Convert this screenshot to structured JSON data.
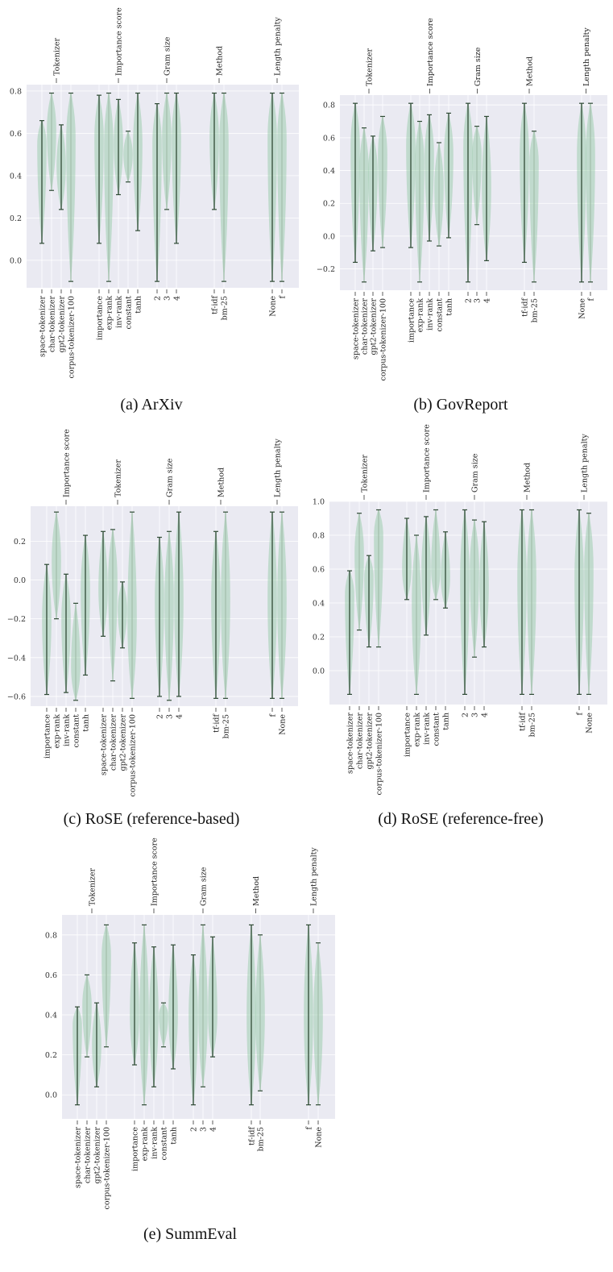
{
  "chart_data": [
    {
      "type": "violin",
      "caption": "(a) ArXiv",
      "ylim": [
        -0.13,
        0.83
      ],
      "yticks": [
        0.0,
        0.2,
        0.4,
        0.6,
        0.8
      ],
      "yticklabels": [
        "0.0",
        "0.2",
        "0.4",
        "0.6",
        "0.8"
      ],
      "groups": [
        {
          "label": "Tokenizer",
          "items": [
            {
              "label": "space-tokenizer",
              "min": 0.08,
              "max": 0.66,
              "center": 0.55
            },
            {
              "label": "char-tokenizer",
              "min": 0.33,
              "max": 0.79,
              "center": 0.62
            },
            {
              "label": "gpt2-tokenizer",
              "min": 0.24,
              "max": 0.64,
              "center": 0.45
            },
            {
              "label": "corpus-tokenizer-100",
              "min": -0.1,
              "max": 0.79,
              "center": 0.58
            }
          ]
        },
        {
          "label": "Importance score",
          "items": [
            {
              "label": "importance",
              "min": 0.08,
              "max": 0.78,
              "center": 0.58
            },
            {
              "label": "exp-rank",
              "min": -0.1,
              "max": 0.79,
              "center": 0.55
            },
            {
              "label": "inv-rank",
              "min": 0.31,
              "max": 0.76,
              "center": 0.55
            },
            {
              "label": "constant",
              "min": 0.37,
              "max": 0.61,
              "center": 0.5
            },
            {
              "label": "tanh",
              "min": 0.14,
              "max": 0.79,
              "center": 0.55
            }
          ]
        },
        {
          "label": "Gram size",
          "items": [
            {
              "label": "2",
              "min": -0.1,
              "max": 0.74,
              "center": 0.55
            },
            {
              "label": "3",
              "min": 0.24,
              "max": 0.79,
              "center": 0.58
            },
            {
              "label": "4",
              "min": 0.08,
              "max": 0.79,
              "center": 0.58
            }
          ]
        },
        {
          "label": "Method",
          "items": [
            {
              "label": "tf-idf",
              "min": 0.24,
              "max": 0.79,
              "center": 0.58
            },
            {
              "label": "bm-25",
              "min": -0.1,
              "max": 0.79,
              "center": 0.56
            }
          ]
        },
        {
          "label": "Length penalty",
          "items": [
            {
              "label": "None",
              "min": -0.1,
              "max": 0.79,
              "center": 0.58
            },
            {
              "label": "f",
              "min": -0.1,
              "max": 0.79,
              "center": 0.57
            }
          ]
        }
      ]
    },
    {
      "type": "violin",
      "caption": "(b) GovReport",
      "ylim": [
        -0.33,
        0.86
      ],
      "yticks": [
        -0.2,
        0.0,
        0.2,
        0.4,
        0.6,
        0.8
      ],
      "yticklabels": [
        "−0.2",
        "0.0",
        "0.2",
        "0.4",
        "0.6",
        "0.8"
      ],
      "groups": [
        {
          "label": "Tokenizer",
          "items": [
            {
              "label": "space-tokenizer",
              "min": -0.16,
              "max": 0.81,
              "center": 0.55
            },
            {
              "label": "char-tokenizer",
              "min": -0.28,
              "max": 0.66,
              "center": 0.4
            },
            {
              "label": "gpt2-tokenizer",
              "min": -0.09,
              "max": 0.61,
              "center": 0.4
            },
            {
              "label": "corpus-tokenizer-100",
              "min": -0.07,
              "max": 0.73,
              "center": 0.5
            }
          ]
        },
        {
          "label": "Importance score",
          "items": [
            {
              "label": "importance",
              "min": -0.07,
              "max": 0.81,
              "center": 0.55
            },
            {
              "label": "exp-rank",
              "min": -0.28,
              "max": 0.7,
              "center": 0.45
            },
            {
              "label": "inv-rank",
              "min": -0.03,
              "max": 0.74,
              "center": 0.5
            },
            {
              "label": "constant",
              "min": -0.06,
              "max": 0.57,
              "center": 0.3
            },
            {
              "label": "tanh",
              "min": -0.01,
              "max": 0.75,
              "center": 0.5
            }
          ]
        },
        {
          "label": "Gram size",
          "items": [
            {
              "label": "2",
              "min": -0.28,
              "max": 0.81,
              "center": 0.55
            },
            {
              "label": "3",
              "min": 0.07,
              "max": 0.67,
              "center": 0.5
            },
            {
              "label": "4",
              "min": -0.15,
              "max": 0.73,
              "center": 0.3
            }
          ]
        },
        {
          "label": "Method",
          "items": [
            {
              "label": "tf-idf",
              "min": -0.16,
              "max": 0.81,
              "center": 0.5
            },
            {
              "label": "bm-25",
              "min": -0.28,
              "max": 0.64,
              "center": 0.45
            }
          ]
        },
        {
          "label": "Length penalty",
          "items": [
            {
              "label": "None",
              "min": -0.28,
              "max": 0.81,
              "center": 0.5
            },
            {
              "label": "f",
              "min": -0.28,
              "max": 0.81,
              "center": 0.5
            }
          ]
        }
      ]
    },
    {
      "type": "violin",
      "caption": "(c) RoSE (reference-based)",
      "ylim": [
        -0.65,
        0.38
      ],
      "yticks": [
        -0.6,
        -0.4,
        -0.2,
        0.0,
        0.2
      ],
      "yticklabels": [
        "−0.6",
        "−0.4",
        "−0.2",
        "0.0",
        "0.2"
      ],
      "groups": [
        {
          "label": "Importance score",
          "items": [
            {
              "label": "importance",
              "min": -0.59,
              "max": 0.08,
              "center": -0.2
            },
            {
              "label": "exp-rank",
              "min": -0.2,
              "max": 0.35,
              "center": 0.1
            },
            {
              "label": "inv-rank",
              "min": -0.58,
              "max": 0.03,
              "center": -0.2
            },
            {
              "label": "constant",
              "min": -0.62,
              "max": -0.12,
              "center": -0.45
            },
            {
              "label": "tanh",
              "min": -0.49,
              "max": 0.23,
              "center": -0.05
            }
          ]
        },
        {
          "label": "Tokenizer",
          "items": [
            {
              "label": "space-tokenizer",
              "min": -0.29,
              "max": 0.25,
              "center": -0.05
            },
            {
              "label": "char-tokenizer",
              "min": -0.52,
              "max": 0.26,
              "center": 0.0
            },
            {
              "label": "gpt2-tokenizer",
              "min": -0.35,
              "max": -0.01,
              "center": -0.15
            },
            {
              "label": "corpus-tokenizer-100",
              "min": -0.61,
              "max": 0.35,
              "center": -0.2
            }
          ]
        },
        {
          "label": "Gram size",
          "items": [
            {
              "label": "2",
              "min": -0.6,
              "max": 0.22,
              "center": -0.1
            },
            {
              "label": "3",
              "min": -0.62,
              "max": 0.25,
              "center": -0.1
            },
            {
              "label": "4",
              "min": -0.6,
              "max": 0.35,
              "center": -0.1
            }
          ]
        },
        {
          "label": "Method",
          "items": [
            {
              "label": "tf-idf",
              "min": -0.61,
              "max": 0.25,
              "center": -0.1
            },
            {
              "label": "bm-25",
              "min": -0.61,
              "max": 0.35,
              "center": -0.1
            }
          ]
        },
        {
          "label": "Length penalty",
          "items": [
            {
              "label": "f",
              "min": -0.61,
              "max": 0.35,
              "center": -0.1
            },
            {
              "label": "None",
              "min": -0.61,
              "max": 0.35,
              "center": -0.1
            }
          ]
        }
      ]
    },
    {
      "type": "violin",
      "caption": "(d) RoSE (reference-free)",
      "ylim": [
        -0.2,
        1.0
      ],
      "yticks": [
        0.0,
        0.2,
        0.4,
        0.6,
        0.8,
        1.0
      ],
      "yticklabels": [
        "0.0",
        "0.2",
        "0.4",
        "0.6",
        "0.8",
        "1.0"
      ],
      "groups": [
        {
          "label": "Tokenizer",
          "items": [
            {
              "label": "space-tokenizer",
              "min": -0.14,
              "max": 0.59,
              "center": 0.45
            },
            {
              "label": "char-tokenizer",
              "min": 0.24,
              "max": 0.93,
              "center": 0.7
            },
            {
              "label": "gpt2-tokenizer",
              "min": 0.14,
              "max": 0.68,
              "center": 0.55
            },
            {
              "label": "corpus-tokenizer-100",
              "min": 0.14,
              "max": 0.95,
              "center": 0.8
            }
          ]
        },
        {
          "label": "Importance score",
          "items": [
            {
              "label": "importance",
              "min": 0.42,
              "max": 0.9,
              "center": 0.6
            },
            {
              "label": "exp-rank",
              "min": -0.14,
              "max": 0.8,
              "center": 0.4
            },
            {
              "label": "inv-rank",
              "min": 0.21,
              "max": 0.91,
              "center": 0.6
            },
            {
              "label": "constant",
              "min": 0.42,
              "max": 0.95,
              "center": 0.6
            },
            {
              "label": "tanh",
              "min": 0.37,
              "max": 0.82,
              "center": 0.55
            }
          ]
        },
        {
          "label": "Gram size",
          "items": [
            {
              "label": "2",
              "min": -0.14,
              "max": 0.95,
              "center": 0.55
            },
            {
              "label": "3",
              "min": 0.08,
              "max": 0.89,
              "center": 0.6
            },
            {
              "label": "4",
              "min": 0.14,
              "max": 0.88,
              "center": 0.5
            }
          ]
        },
        {
          "label": "Method",
          "items": [
            {
              "label": "tf-idf",
              "min": -0.14,
              "max": 0.95,
              "center": 0.55
            },
            {
              "label": "bm-25",
              "min": -0.14,
              "max": 0.95,
              "center": 0.55
            }
          ]
        },
        {
          "label": "Length penalty",
          "items": [
            {
              "label": "f",
              "min": -0.14,
              "max": 0.95,
              "center": 0.55
            },
            {
              "label": "None",
              "min": -0.14,
              "max": 0.93,
              "center": 0.6
            }
          ]
        }
      ]
    },
    {
      "type": "violin",
      "caption": "(e) SummEval",
      "ylim": [
        -0.12,
        0.9
      ],
      "yticks": [
        0.0,
        0.2,
        0.4,
        0.6,
        0.8
      ],
      "yticklabels": [
        "0.0",
        "0.2",
        "0.4",
        "0.6",
        "0.8"
      ],
      "groups": [
        {
          "label": "Tokenizer",
          "items": [
            {
              "label": "space-tokenizer",
              "min": -0.05,
              "max": 0.44,
              "center": 0.35
            },
            {
              "label": "char-tokenizer",
              "min": 0.19,
              "max": 0.6,
              "center": 0.45
            },
            {
              "label": "gpt2-tokenizer",
              "min": 0.04,
              "max": 0.46,
              "center": 0.25
            },
            {
              "label": "corpus-tokenizer-100",
              "min": 0.24,
              "max": 0.85,
              "center": 0.7
            }
          ]
        },
        {
          "label": "Importance score",
          "items": [
            {
              "label": "importance",
              "min": 0.15,
              "max": 0.76,
              "center": 0.4
            },
            {
              "label": "exp-rank",
              "min": -0.05,
              "max": 0.85,
              "center": 0.4
            },
            {
              "label": "inv-rank",
              "min": 0.04,
              "max": 0.74,
              "center": 0.4
            },
            {
              "label": "constant",
              "min": 0.24,
              "max": 0.46,
              "center": 0.4
            },
            {
              "label": "tanh",
              "min": 0.13,
              "max": 0.75,
              "center": 0.4
            }
          ]
        },
        {
          "label": "Gram size",
          "items": [
            {
              "label": "2",
              "min": -0.05,
              "max": 0.7,
              "center": 0.4
            },
            {
              "label": "3",
              "min": 0.04,
              "max": 0.85,
              "center": 0.4
            },
            {
              "label": "4",
              "min": 0.19,
              "max": 0.79,
              "center": 0.4
            }
          ]
        },
        {
          "label": "Method",
          "items": [
            {
              "label": "tf-idf",
              "min": -0.05,
              "max": 0.85,
              "center": 0.4
            },
            {
              "label": "bm-25",
              "min": 0.02,
              "max": 0.8,
              "center": 0.4
            }
          ]
        },
        {
          "label": "Length penalty",
          "items": [
            {
              "label": "f",
              "min": -0.05,
              "max": 0.85,
              "center": 0.4
            },
            {
              "label": "None",
              "min": -0.05,
              "max": 0.76,
              "center": 0.4
            }
          ]
        }
      ]
    }
  ]
}
